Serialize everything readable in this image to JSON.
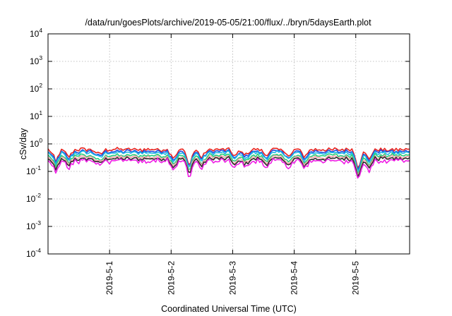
{
  "chart_data": {
    "type": "line",
    "title": "/data/run/goesPlots/archive/2019-05-05/21:00/flux/../bryn/5daysEarth.plot",
    "xlabel": "Coordinated Universal Time (UTC)",
    "ylabel": "cSv/day",
    "y_scale": "log",
    "ylim": [
      0.0001,
      10000
    ],
    "y_ticks": [
      {
        "base": "10",
        "exp": "-4"
      },
      {
        "base": "10",
        "exp": "-3"
      },
      {
        "base": "10",
        "exp": "-2"
      },
      {
        "base": "10",
        "exp": "-1"
      },
      {
        "base": "10",
        "exp": "0"
      },
      {
        "base": "10",
        "exp": "1"
      },
      {
        "base": "10",
        "exp": "2"
      },
      {
        "base": "10",
        "exp": "3"
      },
      {
        "base": "10",
        "exp": "4"
      }
    ],
    "x_ticks": [
      "2019-5-1",
      "2019-5-2",
      "2019-5-3",
      "2019-5-4",
      "2019-5-5"
    ],
    "x_range": [
      "2019-04-30 00:00",
      "2019-05-05 21:00"
    ],
    "grid": true,
    "legend": "none",
    "series": [
      {
        "color": "#e8231e",
        "level": 0.62
      },
      {
        "color": "#1f4de0",
        "level": 0.53
      },
      {
        "color": "#1fb9e6",
        "level": 0.47
      },
      {
        "color": "#25d07a",
        "level": 0.38
      },
      {
        "color": "#f2a2a8",
        "level": 0.33
      },
      {
        "color": "#2b2b2b",
        "level": 0.29
      },
      {
        "color": "#ee1ee4",
        "level": 0.24
      }
    ],
    "dips": [
      {
        "x": "2019-04-30 03:00",
        "factor": 0.35
      },
      {
        "x": "2019-04-30 08:00",
        "factor": 0.5
      },
      {
        "x": "2019-04-30 20:00",
        "factor": 0.6
      },
      {
        "x": "2019-05-02 01:00",
        "factor": 0.45
      },
      {
        "x": "2019-05-02 07:00",
        "factor": 0.22
      },
      {
        "x": "2019-05-02 12:00",
        "factor": 0.5
      },
      {
        "x": "2019-05-03 01:00",
        "factor": 0.55
      },
      {
        "x": "2019-05-03 05:00",
        "factor": 0.6
      },
      {
        "x": "2019-05-03 13:00",
        "factor": 0.6
      },
      {
        "x": "2019-05-03 22:00",
        "factor": 0.55
      },
      {
        "x": "2019-05-04 04:00",
        "factor": 0.5
      },
      {
        "x": "2019-05-05 01:00",
        "factor": 0.15
      },
      {
        "x": "2019-05-05 05:00",
        "factor": 0.4
      }
    ]
  }
}
